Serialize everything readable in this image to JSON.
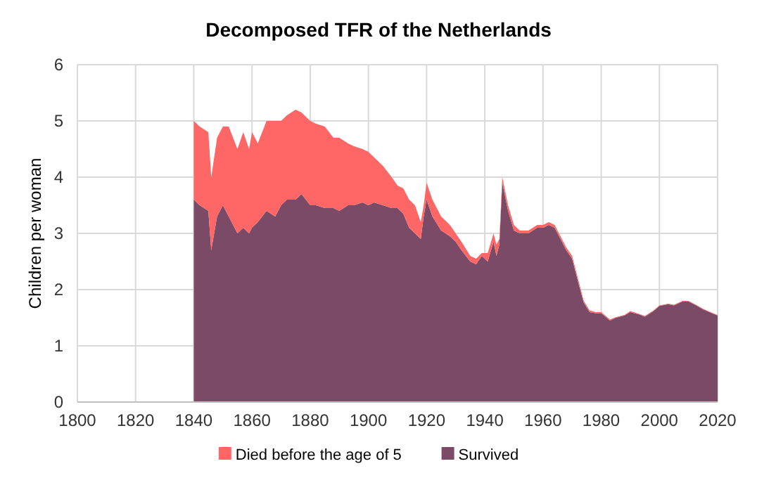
{
  "chart_data": {
    "type": "area",
    "stacked": true,
    "title": "Decomposed TFR of the Netherlands",
    "ylabel": "Children per woman",
    "x": [
      1840,
      1842,
      1845,
      1846,
      1848,
      1850,
      1852,
      1855,
      1857,
      1859,
      1860,
      1862,
      1865,
      1868,
      1870,
      1872,
      1875,
      1877,
      1880,
      1882,
      1885,
      1888,
      1890,
      1893,
      1895,
      1898,
      1900,
      1902,
      1905,
      1908,
      1910,
      1912,
      1914,
      1916,
      1918,
      1919,
      1920,
      1922,
      1925,
      1928,
      1930,
      1932,
      1935,
      1937,
      1939,
      1941,
      1943,
      1944,
      1945,
      1946,
      1948,
      1950,
      1952,
      1955,
      1958,
      1960,
      1962,
      1964,
      1966,
      1968,
      1970,
      1972,
      1974,
      1976,
      1978,
      1980,
      1983,
      1985,
      1988,
      1990,
      1993,
      1995,
      1998,
      2000,
      2003,
      2005,
      2008,
      2010,
      2013,
      2015,
      2018,
      2020
    ],
    "series": [
      {
        "name": "Survived",
        "color": "#7a4a66",
        "values": [
          3.6,
          3.5,
          3.4,
          2.7,
          3.3,
          3.5,
          3.3,
          3.0,
          3.1,
          3.0,
          3.1,
          3.2,
          3.4,
          3.3,
          3.5,
          3.6,
          3.6,
          3.7,
          3.5,
          3.5,
          3.45,
          3.45,
          3.4,
          3.5,
          3.5,
          3.55,
          3.5,
          3.55,
          3.5,
          3.45,
          3.45,
          3.35,
          3.1,
          3.0,
          2.9,
          3.3,
          3.6,
          3.3,
          3.05,
          2.95,
          2.85,
          2.7,
          2.5,
          2.45,
          2.6,
          2.5,
          2.85,
          2.6,
          2.8,
          3.9,
          3.4,
          3.05,
          3.0,
          3.0,
          3.1,
          3.1,
          3.15,
          3.1,
          2.9,
          2.7,
          2.55,
          2.15,
          1.77,
          1.6,
          1.58,
          1.58,
          1.45,
          1.5,
          1.54,
          1.6,
          1.56,
          1.52,
          1.62,
          1.71,
          1.74,
          1.72,
          1.79,
          1.79,
          1.71,
          1.65,
          1.58,
          1.54
        ]
      },
      {
        "name": "Died before the age of 5",
        "color": "#ff6666",
        "values": [
          1.4,
          1.4,
          1.4,
          1.3,
          1.4,
          1.4,
          1.6,
          1.5,
          1.7,
          1.5,
          1.7,
          1.4,
          1.6,
          1.7,
          1.5,
          1.5,
          1.6,
          1.45,
          1.5,
          1.45,
          1.45,
          1.25,
          1.3,
          1.1,
          1.05,
          0.95,
          0.95,
          0.8,
          0.7,
          0.55,
          0.4,
          0.45,
          0.5,
          0.5,
          0.3,
          0.2,
          0.3,
          0.3,
          0.25,
          0.2,
          0.15,
          0.15,
          0.1,
          0.1,
          0.05,
          0.15,
          0.15,
          0.2,
          0.1,
          0.1,
          0.1,
          0.1,
          0.05,
          0.05,
          0.05,
          0.05,
          0.05,
          0.05,
          0.05,
          0.05,
          0.05,
          0.05,
          0.03,
          0.03,
          0.02,
          0.02,
          0.02,
          0.01,
          0.01,
          0.02,
          0.01,
          0.01,
          0.01,
          0.01,
          0.01,
          0.01,
          0.01,
          0.01,
          0.01,
          0.01,
          0.01,
          0.01
        ]
      }
    ],
    "xlim": [
      1800,
      2020
    ],
    "xticks": [
      1800,
      1820,
      1840,
      1860,
      1880,
      1900,
      1920,
      1940,
      1960,
      1980,
      2000,
      2020
    ],
    "ylim": [
      0,
      6
    ],
    "yticks": [
      0,
      1,
      2,
      3,
      4,
      5,
      6
    ],
    "grid": true,
    "legend": "bottom"
  }
}
